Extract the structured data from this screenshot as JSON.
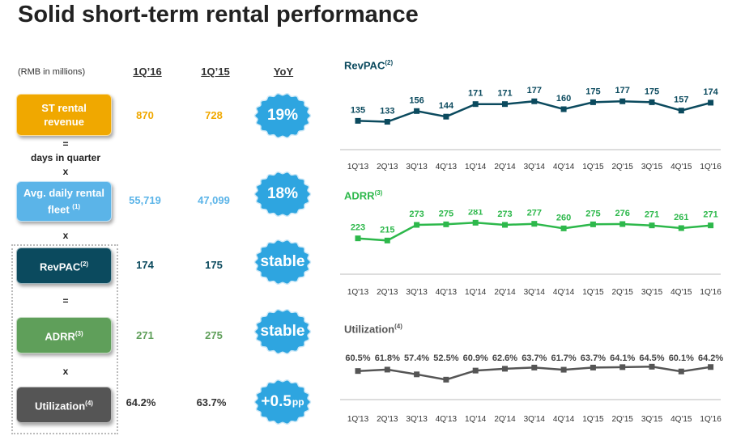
{
  "title": "Solid short-term rental performance",
  "units": "(RMB in millions)",
  "headers": {
    "cur": "1Q’16",
    "prev": "1Q’15",
    "yoy": "YoY"
  },
  "rows": {
    "revenue": {
      "label_line1": "ST rental",
      "label_line2": "revenue",
      "cur": "870",
      "prev": "728",
      "yoy": "19%",
      "color": "#F0A800"
    },
    "fleet": {
      "label_line1": "Avg. daily rental",
      "label_line2": "fleet",
      "label_sup": "(1)",
      "cur": "55,719",
      "prev": "47,099",
      "yoy": "18%",
      "color": "#5BB4E8"
    },
    "revpac": {
      "label": "RevPAC",
      "label_sup": "(2)",
      "cur": "174",
      "prev": "175",
      "yoy": "stable",
      "color": "#0B4A5E"
    },
    "adrr": {
      "label": "ADRR",
      "label_sup": "(3)",
      "cur": "271",
      "prev": "275",
      "yoy": "stable",
      "color": "#5F9F5A"
    },
    "util": {
      "label": "Utilization",
      "label_sup": "(4)",
      "cur": "64.2%",
      "prev": "63.7%",
      "yoy": "+0.5",
      "yoy_suffix": "pp",
      "color": "#555555"
    }
  },
  "operators": {
    "eq1": "=",
    "days": "days in quarter",
    "x1": "x",
    "x2": "x",
    "eq2": "=",
    "x3": "x"
  },
  "badge_color": "#2EA5E0",
  "chart_data": [
    {
      "type": "line",
      "title": "RevPAC",
      "title_sup": "(2)",
      "color": "#0B4A5E",
      "categories": [
        "1Q'13",
        "2Q'13",
        "3Q'13",
        "4Q'13",
        "1Q'14",
        "2Q'14",
        "3Q'14",
        "4Q'14",
        "1Q'15",
        "2Q'15",
        "3Q'15",
        "4Q'15",
        "1Q'16"
      ],
      "values": [
        135,
        133,
        156,
        144,
        171,
        171,
        177,
        160,
        175,
        177,
        175,
        157,
        174
      ],
      "labels": [
        "135",
        "133",
        "156",
        "144",
        "171",
        "171",
        "177",
        "160",
        "175",
        "177",
        "175",
        "157",
        "174"
      ]
    },
    {
      "type": "line",
      "title": "ADRR",
      "title_sup": "(3)",
      "color": "#2DB84B",
      "categories": [
        "1Q'13",
        "2Q'13",
        "3Q'13",
        "4Q'13",
        "1Q'14",
        "2Q'14",
        "3Q'14",
        "4Q'14",
        "1Q'15",
        "2Q'15",
        "3Q'15",
        "4Q'15",
        "1Q'16"
      ],
      "values": [
        223,
        215,
        273,
        275,
        281,
        273,
        277,
        260,
        275,
        276,
        271,
        261,
        271
      ],
      "labels": [
        "223",
        "215",
        "273",
        "275",
        "281",
        "273",
        "277",
        "260",
        "275",
        "276",
        "271",
        "261",
        "271"
      ]
    },
    {
      "type": "line",
      "title": "Utilization",
      "title_sup": "(4)",
      "color": "#555555",
      "categories": [
        "1Q'13",
        "2Q'13",
        "3Q'13",
        "4Q'13",
        "1Q'14",
        "2Q'14",
        "3Q'14",
        "4Q'14",
        "1Q'15",
        "2Q'15",
        "3Q'15",
        "4Q'15",
        "1Q'16"
      ],
      "values": [
        60.5,
        61.8,
        57.4,
        52.5,
        60.9,
        62.6,
        63.7,
        61.7,
        63.7,
        64.1,
        64.5,
        60.1,
        64.2
      ],
      "labels": [
        "60.5%",
        "61.8%",
        "57.4%",
        "52.5%",
        "60.9%",
        "62.6%",
        "63.7%",
        "61.7%",
        "63.7%",
        "64.1%",
        "64.5%",
        "60.1%",
        "64.2%"
      ]
    }
  ]
}
